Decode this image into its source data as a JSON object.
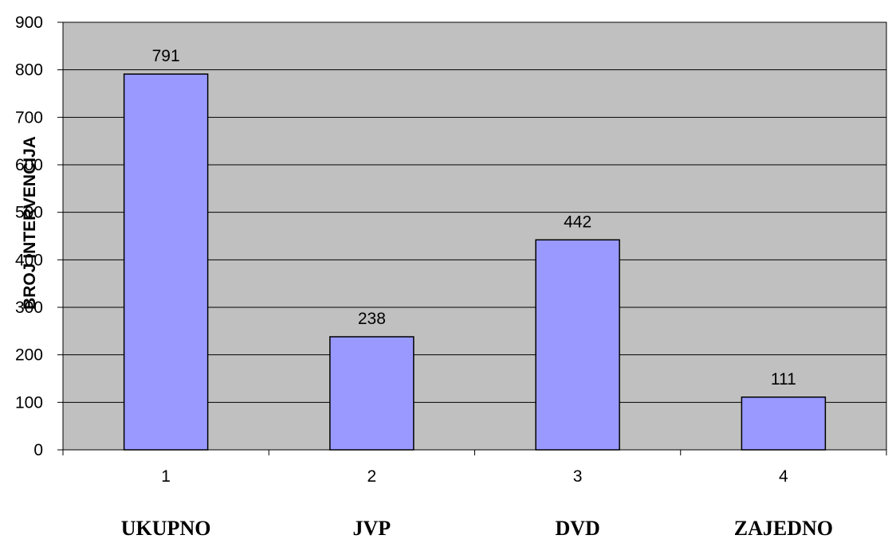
{
  "chart_data": {
    "type": "bar",
    "categories": [
      "1",
      "2",
      "3",
      "4"
    ],
    "category_names": [
      "UKUPNO",
      "JVP",
      "DVD",
      "ZAJEDNO"
    ],
    "values": [
      791,
      238,
      442,
      111
    ],
    "data_labels": [
      "791",
      "238",
      "442",
      "111"
    ],
    "title": "",
    "xlabel": "",
    "ylabel": "BROJ INTERVENCIJA",
    "ylim": [
      0,
      900
    ],
    "yticks": [
      "0",
      "100",
      "200",
      "300",
      "400",
      "500",
      "600",
      "700",
      "800",
      "900"
    ],
    "grid": true,
    "legend": "none",
    "colors": {
      "plot_background": "#c0c0c0",
      "bar_fill": "#9999ff",
      "bar_stroke": "#000000",
      "gridline": "#000000"
    }
  }
}
